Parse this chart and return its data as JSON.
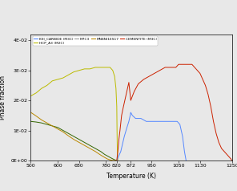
{
  "xlabel": "Temperature (K)",
  "ylabel": "Phase fraction",
  "xlim": [
    500,
    1250
  ],
  "ylim": [
    0,
    0.042
  ],
  "xticks": [
    500,
    600,
    680,
    780,
    820,
    872,
    950,
    1050,
    1130,
    1250
  ],
  "yticks": [
    0.0,
    0.01,
    0.02,
    0.03,
    0.04
  ],
  "ytick_labels": [
    "0E+00",
    "1E-02",
    "2E-02",
    "3E-02",
    "4E-02"
  ],
  "background_color": "#e8e8e8",
  "plot_bg": "#e8e8e8",
  "legend_row1": [
    "KSI_CARBIDE (M3C)",
    "HCP_A3 (M2C)",
    "M7C3",
    "MN8NI1ES17"
  ],
  "legend_row2": [
    "CEMENTITE (M3C)"
  ],
  "legend_colors_row1": [
    "#5588ff",
    "#bbbb00",
    "#999999",
    "#bb8800"
  ],
  "legend_colors_row2": [
    "#cc2200"
  ],
  "series": {
    "HCP_A3_M2C": {
      "color": "#bbbb00",
      "x": [
        500,
        520,
        540,
        560,
        580,
        600,
        620,
        640,
        660,
        680,
        700,
        720,
        740,
        760,
        780,
        795,
        805,
        812,
        817,
        820,
        821,
        822,
        823,
        824
      ],
      "y": [
        0.0215,
        0.0225,
        0.024,
        0.025,
        0.0265,
        0.027,
        0.0275,
        0.0285,
        0.0295,
        0.03,
        0.0305,
        0.0305,
        0.031,
        0.031,
        0.031,
        0.031,
        0.03,
        0.028,
        0.024,
        0.018,
        0.01,
        0.004,
        0.001,
        0.0
      ]
    },
    "KSI_CARBIDE_M3C": {
      "color": "#5588ff",
      "x": [
        820,
        835,
        848,
        858,
        865,
        870,
        872,
        878,
        890,
        910,
        930,
        950,
        970,
        990,
        1010,
        1030,
        1045,
        1055,
        1065,
        1072,
        1078
      ],
      "y": [
        0.0,
        0.003,
        0.008,
        0.011,
        0.013,
        0.015,
        0.016,
        0.015,
        0.014,
        0.014,
        0.013,
        0.013,
        0.013,
        0.013,
        0.013,
        0.013,
        0.013,
        0.012,
        0.008,
        0.003,
        0.0
      ]
    },
    "MN8NI1ES17": {
      "color": "#bb8800",
      "x": [
        500,
        520,
        540,
        560,
        580,
        600,
        620,
        640,
        660,
        680,
        700,
        720,
        740,
        760,
        775,
        785,
        795,
        805,
        815,
        820
      ],
      "y": [
        0.016,
        0.0148,
        0.0135,
        0.0125,
        0.0115,
        0.0105,
        0.0095,
        0.0082,
        0.007,
        0.006,
        0.005,
        0.004,
        0.003,
        0.0018,
        0.001,
        0.0005,
        0.0002,
        0.0,
        0.0,
        0.0
      ]
    },
    "CEMENTITE_M3C": {
      "color": "#cc2200",
      "x": [
        820,
        824,
        828,
        832,
        838,
        845,
        855,
        865,
        872,
        885,
        900,
        920,
        940,
        960,
        980,
        1000,
        1020,
        1040,
        1050,
        1060,
        1070,
        1075,
        1080,
        1090,
        1100,
        1110,
        1120,
        1130,
        1140,
        1150,
        1160,
        1170,
        1180,
        1190,
        1200,
        1210,
        1220,
        1230,
        1240,
        1245,
        1248,
        1250
      ],
      "y": [
        0.0,
        0.003,
        0.007,
        0.01,
        0.015,
        0.018,
        0.022,
        0.026,
        0.02,
        0.023,
        0.0255,
        0.027,
        0.028,
        0.029,
        0.03,
        0.031,
        0.031,
        0.031,
        0.032,
        0.032,
        0.032,
        0.032,
        0.032,
        0.032,
        0.032,
        0.031,
        0.03,
        0.029,
        0.027,
        0.025,
        0.022,
        0.018,
        0.013,
        0.009,
        0.006,
        0.004,
        0.003,
        0.002,
        0.001,
        0.0005,
        0.0,
        0.0
      ]
    },
    "GREEN_LINE": {
      "color": "#336600",
      "x": [
        500,
        520,
        540,
        560,
        580,
        600,
        620,
        640,
        660,
        680,
        700,
        720,
        740,
        760,
        775,
        785,
        795,
        808,
        815,
        820
      ],
      "y": [
        0.013,
        0.0128,
        0.0125,
        0.012,
        0.0115,
        0.011,
        0.01,
        0.009,
        0.008,
        0.007,
        0.006,
        0.005,
        0.004,
        0.003,
        0.002,
        0.0015,
        0.001,
        0.0004,
        0.0001,
        0.0
      ]
    }
  },
  "tick_font_size": 4.5,
  "label_font_size": 5.5
}
